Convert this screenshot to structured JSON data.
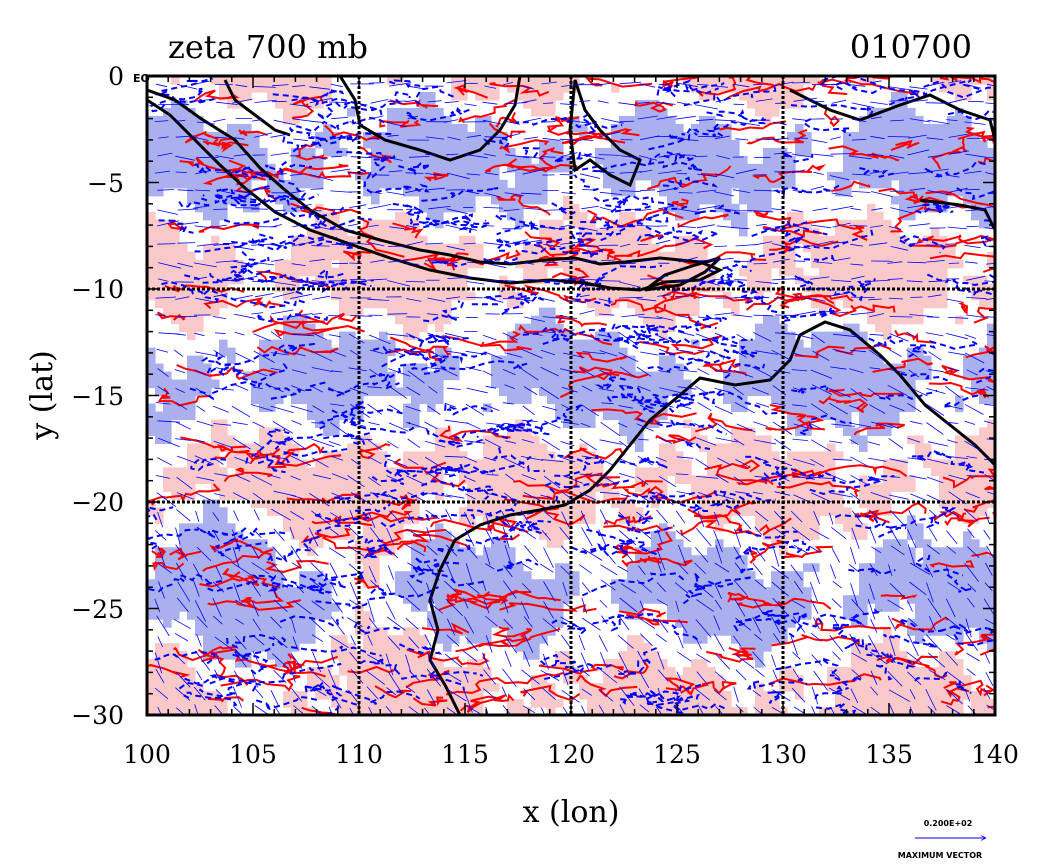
{
  "header": {
    "title": "zeta 700 mb",
    "timestamp": "010700"
  },
  "axes": {
    "xlabel": "x (lon)",
    "ylabel": "y (lat)",
    "xticks": [
      "100",
      "105",
      "110",
      "115",
      "120",
      "125",
      "130",
      "135",
      "140"
    ],
    "yticks": [
      "0",
      "−5",
      "−10",
      "−15",
      "−20",
      "−25",
      "−30"
    ],
    "equator_label": "EQ"
  },
  "vector_key": {
    "magnitude": "0.200E+02",
    "label": "MAXIMUM VECTOR"
  },
  "chart_data": {
    "type": "heatmap",
    "title": "zeta 700 mb",
    "subtitle": "010700",
    "xlabel": "x (lon)",
    "ylabel": "y (lat)",
    "xlim": [
      100,
      140
    ],
    "ylim": [
      -30,
      0
    ],
    "grid_lon": [
      110,
      120,
      130
    ],
    "grid_lat": [
      -10,
      -20
    ],
    "grid": true,
    "colors": {
      "positive_fill": "#f9c9c9",
      "positive_contour": "#ff0000",
      "negative_fill": "#aab0ee",
      "negative_contour": "#0000ff",
      "vectors": "#0000ff",
      "coastline": "#000000"
    }
  }
}
